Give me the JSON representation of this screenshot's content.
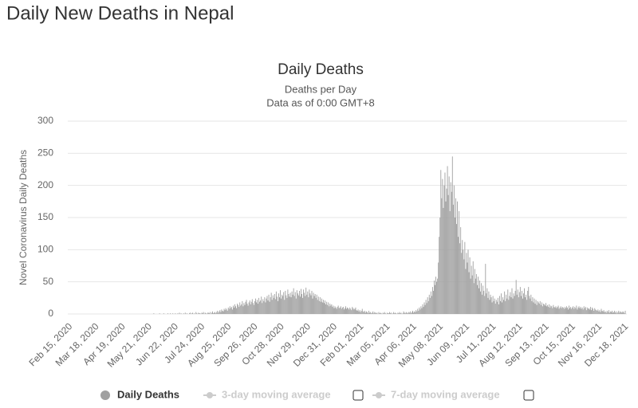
{
  "heading": "Daily New Deaths in Nepal",
  "chart_data": {
    "type": "bar",
    "title": "Daily Deaths",
    "subtitle": [
      "Deaths per Day",
      "Data as of 0:00 GMT+8"
    ],
    "ylabel": "Novel Coronavirus Daily Deaths",
    "ylim": [
      0,
      300
    ],
    "yticks": [
      0,
      50,
      100,
      150,
      200,
      250,
      300
    ],
    "grid": true,
    "hidden_series": [
      "3-day moving average",
      "7-day moving average"
    ],
    "categories": [
      "Feb 15, 2020",
      null,
      null,
      null,
      null,
      null,
      null,
      null,
      null,
      null,
      null,
      null,
      null,
      null,
      null,
      null,
      null,
      null,
      null,
      null,
      null,
      null,
      null,
      null,
      null,
      null,
      null,
      null,
      null,
      null,
      null,
      null,
      "Mar 18, 2020",
      null,
      null,
      null,
      null,
      null,
      null,
      null,
      null,
      null,
      null,
      null,
      null,
      null,
      null,
      null,
      null,
      null,
      null,
      null,
      null,
      null,
      null,
      null,
      null,
      null,
      null,
      null,
      null,
      null,
      null,
      null,
      "Apr 19, 2020",
      null,
      null,
      null,
      null,
      null,
      null,
      null,
      null,
      null,
      null,
      null,
      null,
      null,
      null,
      null,
      null,
      null,
      null,
      null,
      null,
      null,
      null,
      null,
      null,
      null,
      null,
      null,
      null,
      null,
      null,
      null,
      "May 21, 2020",
      null,
      null,
      null,
      null,
      null,
      null,
      null,
      null,
      null,
      null,
      null,
      null,
      null,
      null,
      null,
      null,
      null,
      null,
      null,
      null,
      null,
      null,
      null,
      null,
      null,
      null,
      null,
      null,
      null,
      null,
      null,
      "Jun 22, 2020",
      null,
      null,
      null,
      null,
      null,
      null,
      null,
      null,
      null,
      null,
      null,
      null,
      null,
      null,
      null,
      null,
      null,
      null,
      null,
      null,
      null,
      null,
      null,
      null,
      null,
      null,
      null,
      null,
      null,
      null,
      null,
      "Jul 24, 2020",
      null,
      null,
      null,
      null,
      null,
      null,
      null,
      null,
      null,
      null,
      null,
      null,
      null,
      null,
      null,
      null,
      null,
      null,
      null,
      null,
      null,
      null,
      null,
      null,
      null,
      null,
      null,
      null,
      null,
      null,
      null,
      "Aug 25, 2020",
      null,
      null,
      null,
      null,
      null,
      null,
      null,
      null,
      null,
      null,
      null,
      null,
      null,
      null,
      null,
      null,
      null,
      null,
      null,
      null,
      null,
      null,
      null,
      null,
      null,
      null,
      null,
      null,
      null,
      null,
      null,
      "Sep 26, 2020",
      null,
      null,
      null,
      null,
      null,
      null,
      null,
      null,
      null,
      null,
      null,
      null,
      null,
      null,
      null,
      null,
      null,
      null,
      null,
      null,
      null,
      null,
      null,
      null,
      null,
      null,
      null,
      null,
      null,
      null,
      null,
      "Oct 28, 2020",
      null,
      null,
      null,
      null,
      null,
      null,
      null,
      null,
      null,
      null,
      null,
      null,
      null,
      null,
      null,
      null,
      null,
      null,
      null,
      null,
      null,
      null,
      null,
      null,
      null,
      null,
      null,
      null,
      null,
      null,
      null,
      "Nov 29, 2020",
      null,
      null,
      null,
      null,
      null,
      null,
      null,
      null,
      null,
      null,
      null,
      null,
      null,
      null,
      null,
      null,
      null,
      null,
      null,
      null,
      null,
      null,
      null,
      null,
      null,
      null,
      null,
      null,
      null,
      null,
      null,
      "Dec 31, 2020",
      null,
      null,
      null,
      null,
      null,
      null,
      null,
      null,
      null,
      null,
      null,
      null,
      null,
      null,
      null,
      null,
      null,
      null,
      null,
      null,
      null,
      null,
      null,
      null,
      null,
      null,
      null,
      null,
      null,
      null,
      null,
      "Feb 01, 2021",
      null,
      null,
      null,
      null,
      null,
      null,
      null,
      null,
      null,
      null,
      null,
      null,
      null,
      null,
      null,
      null,
      null,
      null,
      null,
      null,
      null,
      null,
      null,
      null,
      null,
      null,
      null,
      null,
      null,
      null,
      null,
      "Mar 05, 2021",
      null,
      null,
      null,
      null,
      null,
      null,
      null,
      null,
      null,
      null,
      null,
      null,
      null,
      null,
      null,
      null,
      null,
      null,
      null,
      null,
      null,
      null,
      null,
      null,
      null,
      null,
      null,
      null,
      null,
      null,
      null,
      "Apr 06, 2021",
      null,
      null,
      null,
      null,
      null,
      null,
      null,
      null,
      null,
      null,
      null,
      null,
      null,
      null,
      null,
      null,
      null,
      null,
      null,
      null,
      null,
      null,
      null,
      null,
      null,
      null,
      null,
      null,
      null,
      null,
      null,
      "May 08, 2021",
      null,
      null,
      null,
      null,
      null,
      null,
      null,
      null,
      null,
      null,
      null,
      null,
      null,
      null,
      null,
      null,
      null,
      null,
      null,
      null,
      null,
      null,
      null,
      null,
      null,
      null,
      null,
      null,
      null,
      null,
      null,
      "Jun 09, 2021",
      null,
      null,
      null,
      null,
      null,
      null,
      null,
      null,
      null,
      null,
      null,
      null,
      null,
      null,
      null,
      null,
      null,
      null,
      null,
      null,
      null,
      null,
      null,
      null,
      null,
      null,
      null,
      null,
      null,
      null,
      null,
      "Jul 11, 2021",
      null,
      null,
      null,
      null,
      null,
      null,
      null,
      null,
      null,
      null,
      null,
      null,
      null,
      null,
      null,
      null,
      null,
      null,
      null,
      null,
      null,
      null,
      null,
      null,
      null,
      null,
      null,
      null,
      null,
      null,
      null,
      "Aug 12, 2021",
      null,
      null,
      null,
      null,
      null,
      null,
      null,
      null,
      null,
      null,
      null,
      null,
      null,
      null,
      null,
      null,
      null,
      null,
      null,
      null,
      null,
      null,
      null,
      null,
      null,
      null,
      null,
      null,
      null,
      null,
      null,
      "Sep 13, 2021",
      null,
      null,
      null,
      null,
      null,
      null,
      null,
      null,
      null,
      null,
      null,
      null,
      null,
      null,
      null,
      null,
      null,
      null,
      null,
      null,
      null,
      null,
      null,
      null,
      null,
      null,
      null,
      null,
      null,
      null,
      null,
      "Oct 15, 2021",
      null,
      null,
      null,
      null,
      null,
      null,
      null,
      null,
      null,
      null,
      null,
      null,
      null,
      null,
      null,
      null,
      null,
      null,
      null,
      null,
      null,
      null,
      null,
      null,
      null,
      null,
      null,
      null,
      null,
      null,
      null,
      "Nov 16, 2021",
      null,
      null,
      null,
      null,
      null,
      null,
      null,
      null,
      null,
      null,
      null,
      null,
      null,
      null,
      null,
      null,
      null,
      null,
      null,
      null,
      null,
      null,
      null,
      null,
      null,
      null,
      null,
      null,
      null,
      null,
      null,
      "Dec 18, 2021",
      null,
      null
    ],
    "series": [
      {
        "name": "Daily Deaths",
        "color": "#a0a0a0",
        "values": [
          0,
          0,
          0,
          0,
          0,
          0,
          0,
          0,
          0,
          0,
          0,
          0,
          0,
          0,
          0,
          0,
          0,
          0,
          0,
          0,
          0,
          0,
          0,
          0,
          0,
          0,
          0,
          0,
          0,
          0,
          0,
          0,
          0,
          0,
          0,
          0,
          0,
          0,
          0,
          0,
          0,
          0,
          0,
          0,
          0,
          0,
          0,
          0,
          0,
          0,
          0,
          0,
          0,
          0,
          0,
          0,
          0,
          0,
          0,
          0,
          0,
          0,
          0,
          0,
          0,
          0,
          0,
          0,
          0,
          0,
          0,
          0,
          0,
          0,
          0,
          0,
          0,
          0,
          0,
          0,
          0,
          0,
          0,
          0,
          0,
          0,
          0,
          0,
          0,
          0,
          0,
          0,
          0,
          0,
          0,
          0,
          0,
          0,
          0,
          0,
          0,
          0,
          0,
          0,
          1,
          0,
          0,
          0,
          0,
          0,
          0,
          1,
          0,
          0,
          0,
          0,
          1,
          0,
          0,
          0,
          0,
          1,
          0,
          0,
          1,
          0,
          0,
          1,
          0,
          0,
          1,
          0,
          0,
          1,
          0,
          2,
          0,
          1,
          0,
          0,
          1,
          0,
          2,
          0,
          1,
          0,
          0,
          1,
          2,
          0,
          1,
          2,
          0,
          1,
          0,
          3,
          1,
          0,
          2,
          1,
          1,
          0,
          2,
          1,
          3,
          0,
          2,
          1,
          0,
          2,
          2,
          1,
          3,
          0,
          2,
          4,
          1,
          2,
          3,
          1,
          3,
          5,
          2,
          4,
          6,
          3,
          7,
          5,
          4,
          8,
          6,
          9,
          7,
          5,
          10,
          8,
          12,
          9,
          11,
          7,
          13,
          10,
          15,
          12,
          9,
          16,
          14,
          11,
          18,
          13,
          15,
          20,
          12,
          17,
          14,
          19,
          22,
          16,
          13,
          18,
          21,
          15,
          19,
          23,
          17,
          14,
          20,
          24,
          18,
          22,
          16,
          25,
          19,
          21,
          27,
          17,
          23,
          20,
          26,
          18,
          24,
          28,
          21,
          30,
          19,
          26,
          33,
          22,
          29,
          25,
          31,
          23,
          35,
          27,
          20,
          32,
          26,
          37,
          24,
          30,
          28,
          34,
          22,
          36,
          29,
          25,
          38,
          31,
          27,
          33,
          26,
          35,
          30,
          40,
          28,
          34,
          24,
          37,
          32,
          29,
          36,
          27,
          39,
          31,
          25,
          38,
          33,
          28,
          41,
          30,
          35,
          26,
          38,
          32,
          29,
          36,
          24,
          33,
          28,
          31,
          25,
          30,
          22,
          27,
          20,
          26,
          19,
          24,
          18,
          22,
          17,
          21,
          15,
          19,
          14,
          18,
          12,
          16,
          13,
          15,
          11,
          13,
          9,
          12,
          10,
          8,
          11,
          13,
          9,
          10,
          12,
          8,
          10,
          11,
          7,
          9,
          12,
          8,
          10,
          9,
          7,
          10,
          8,
          6,
          11,
          9,
          7,
          8,
          10,
          6,
          5,
          7,
          4,
          6,
          3,
          5,
          8,
          4,
          3,
          5,
          2,
          4,
          3,
          1,
          5,
          2,
          3,
          1,
          2,
          4,
          1,
          3,
          2,
          1,
          2,
          0,
          3,
          1,
          2,
          1,
          0,
          2,
          1,
          3,
          1,
          0,
          2,
          1,
          1,
          3,
          1,
          2,
          0,
          1,
          3,
          1,
          2,
          1,
          0,
          2,
          1,
          3,
          1,
          2,
          0,
          1,
          4,
          2,
          1,
          3,
          2,
          1,
          3,
          2,
          4,
          1,
          3,
          5,
          2,
          4,
          3,
          6,
          4,
          8,
          5,
          10,
          7,
          12,
          9,
          15,
          11,
          18,
          14,
          22,
          17,
          26,
          20,
          30,
          25,
          35,
          28,
          42,
          36,
          52,
          45,
          58,
          50,
          55,
          80,
          120,
          150,
          224,
          180,
          210,
          165,
          200,
          220,
          175,
          195,
          230,
          185,
          214,
          160,
          205,
          190,
          245,
          170,
          200,
          150,
          180,
          140,
          175,
          120,
          160,
          110,
          135,
          95,
          115,
          100,
          85,
          112,
          70,
          95,
          80,
          100,
          65,
          88,
          55,
          75,
          60,
          82,
          48,
          70,
          55,
          62,
          45,
          58,
          40,
          52,
          35,
          48,
          30,
          44,
          36,
          28,
          78,
          32,
          40,
          25,
          35,
          22,
          30,
          26,
          18,
          28,
          20,
          24,
          16,
          22,
          19,
          25,
          15,
          28,
          20,
          32,
          18,
          26,
          22,
          35,
          20,
          30,
          24,
          38,
          22,
          28,
          34,
          26,
          40,
          24,
          32,
          28,
          36,
          53,
          30,
          38,
          26,
          34,
          42,
          28,
          36,
          24,
          32,
          40,
          26,
          30,
          22,
          36,
          42,
          28,
          24,
          30,
          20,
          26,
          18,
          24,
          16,
          22,
          14,
          20,
          18,
          16,
          20,
          14,
          18,
          12,
          16,
          15,
          13,
          17,
          12,
          14,
          11,
          15,
          10,
          13,
          12,
          9,
          14,
          11,
          10,
          12,
          9,
          11,
          13,
          8,
          10,
          12,
          9,
          11,
          10,
          8,
          11,
          9,
          12,
          10,
          7,
          13,
          9,
          11,
          8,
          10,
          12,
          8,
          11,
          9,
          13,
          7,
          10,
          12,
          9,
          11,
          8,
          10,
          7,
          12,
          9,
          11,
          6,
          10,
          8,
          9,
          7,
          11,
          6,
          10,
          8,
          5,
          9,
          7,
          6,
          5,
          7,
          4,
          6,
          3,
          8,
          5,
          4,
          6,
          3,
          4,
          2,
          5,
          3,
          6,
          2,
          4,
          3,
          5,
          2,
          3,
          5,
          2,
          4,
          1,
          3,
          5,
          2,
          4,
          3,
          2,
          4,
          3,
          1,
          5
        ]
      }
    ]
  }
}
